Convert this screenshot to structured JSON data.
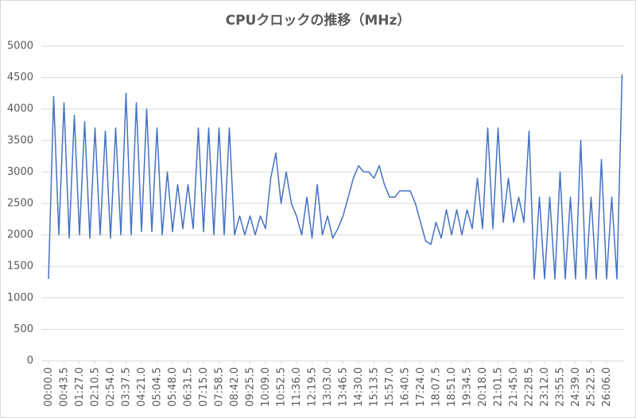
{
  "chart_data": {
    "type": "line",
    "title": "CPUクロックの推移（MHz）",
    "x": [
      0,
      14.5,
      29,
      43.5,
      58,
      72.5,
      87,
      101.5,
      116,
      130.5,
      145,
      159.5,
      174,
      188.5,
      203,
      217.5,
      232,
      246.5,
      261,
      275.5,
      290,
      304.5,
      319,
      333.5,
      348,
      362.5,
      377,
      391.5,
      406,
      420.5,
      435,
      449.5,
      464,
      478.5,
      493,
      507.5,
      522,
      536.5,
      551,
      565.5,
      580,
      594.5,
      609,
      623.5,
      638,
      652.5,
      667,
      681.5,
      696,
      710.5,
      725,
      739.5,
      754,
      768.5,
      783,
      797.5,
      812,
      826.5,
      841,
      855.5,
      870,
      884.5,
      899,
      913.5,
      928,
      942.5,
      957,
      971.5,
      986,
      1000.5,
      1015,
      1029.5,
      1044,
      1058.5,
      1073,
      1087.5,
      1102,
      1116.5,
      1131,
      1145.5,
      1160,
      1174.5,
      1189,
      1203.5,
      1218,
      1232.5,
      1247,
      1261.5,
      1276,
      1290.5,
      1305,
      1319.5,
      1334,
      1348.5,
      1363,
      1377.5,
      1392,
      1406.5,
      1421,
      1435.5,
      1450,
      1464.5,
      1479,
      1493.5,
      1508,
      1522.5,
      1537,
      1551.5,
      1566,
      1580.5,
      1595,
      1609.5
    ],
    "series": [
      {
        "name": "CPUクロック",
        "color": "#4472c4",
        "values": [
          1300,
          4200,
          2000,
          4100,
          1950,
          3900,
          2000,
          3800,
          1950,
          3700,
          2000,
          3650,
          1950,
          3700,
          2000,
          4250,
          2000,
          4100,
          2050,
          4000,
          2050,
          3700,
          2000,
          3000,
          2050,
          2800,
          2100,
          2800,
          2100,
          3700,
          2050,
          3700,
          2000,
          3700,
          2000,
          3700,
          2000,
          2300,
          2000,
          2300,
          2000,
          2300,
          2100,
          2900,
          3300,
          2500,
          3000,
          2500,
          2300,
          2000,
          2600,
          1950,
          2800,
          2000,
          2300,
          1950,
          2100,
          2300,
          2600,
          2900,
          3100,
          3000,
          3000,
          2900,
          3100,
          2800,
          2600,
          2600,
          2700,
          2700,
          2700,
          2500,
          2200,
          1900,
          1850,
          2200,
          1950,
          2400,
          2000,
          2400,
          2000,
          2400,
          2100,
          2900,
          2100,
          3700,
          2100,
          3700,
          2200,
          2900,
          2200,
          2600,
          2200,
          3650,
          1300,
          2600,
          1300,
          2600,
          1300,
          3000,
          1300,
          2600,
          1300,
          3500,
          1300,
          2600,
          1300,
          3200,
          1300,
          2600,
          1300,
          4550
        ]
      }
    ],
    "xlim": [
      0,
      1615
    ],
    "xticks": [
      {
        "value": 0,
        "label": "00:00.0"
      },
      {
        "value": 43.5,
        "label": "00:43.5"
      },
      {
        "value": 87,
        "label": "01:27.0"
      },
      {
        "value": 130.5,
        "label": "02:10.5"
      },
      {
        "value": 174,
        "label": "02:54.0"
      },
      {
        "value": 217.5,
        "label": "03:37.5"
      },
      {
        "value": 261,
        "label": "04:21.0"
      },
      {
        "value": 304.5,
        "label": "05:04.5"
      },
      {
        "value": 348,
        "label": "05:48.0"
      },
      {
        "value": 391.5,
        "label": "06:31.5"
      },
      {
        "value": 435,
        "label": "07:15.0"
      },
      {
        "value": 478.5,
        "label": "07:58.5"
      },
      {
        "value": 522,
        "label": "08:42.0"
      },
      {
        "value": 565.5,
        "label": "09:25.5"
      },
      {
        "value": 609,
        "label": "10:09.0"
      },
      {
        "value": 652.5,
        "label": "10:52.5"
      },
      {
        "value": 696,
        "label": "11:36.0"
      },
      {
        "value": 739.5,
        "label": "12:19.5"
      },
      {
        "value": 783,
        "label": "13:03.0"
      },
      {
        "value": 826.5,
        "label": "13:46.5"
      },
      {
        "value": 870,
        "label": "14:30.0"
      },
      {
        "value": 913.5,
        "label": "15:13.5"
      },
      {
        "value": 957,
        "label": "15:57.0"
      },
      {
        "value": 1000.5,
        "label": "16:40.5"
      },
      {
        "value": 1044,
        "label": "17:24.0"
      },
      {
        "value": 1087.5,
        "label": "18:07.5"
      },
      {
        "value": 1131,
        "label": "18:51.0"
      },
      {
        "value": 1174.5,
        "label": "19:34.5"
      },
      {
        "value": 1218,
        "label": "20:18.0"
      },
      {
        "value": 1261.5,
        "label": "21:01.5"
      },
      {
        "value": 1305,
        "label": "21:45.0"
      },
      {
        "value": 1348.5,
        "label": "22:28.5"
      },
      {
        "value": 1392,
        "label": "23:12.0"
      },
      {
        "value": 1435.5,
        "label": "23:55.5"
      },
      {
        "value": 1479,
        "label": "24:39.0"
      },
      {
        "value": 1522.5,
        "label": "25:22.5"
      },
      {
        "value": 1566,
        "label": "26:06.0"
      }
    ],
    "ylim": [
      0,
      5000
    ],
    "yticks": [
      0,
      500,
      1000,
      1500,
      2000,
      2500,
      3000,
      3500,
      4000,
      4500,
      5000
    ],
    "grid": true
  }
}
